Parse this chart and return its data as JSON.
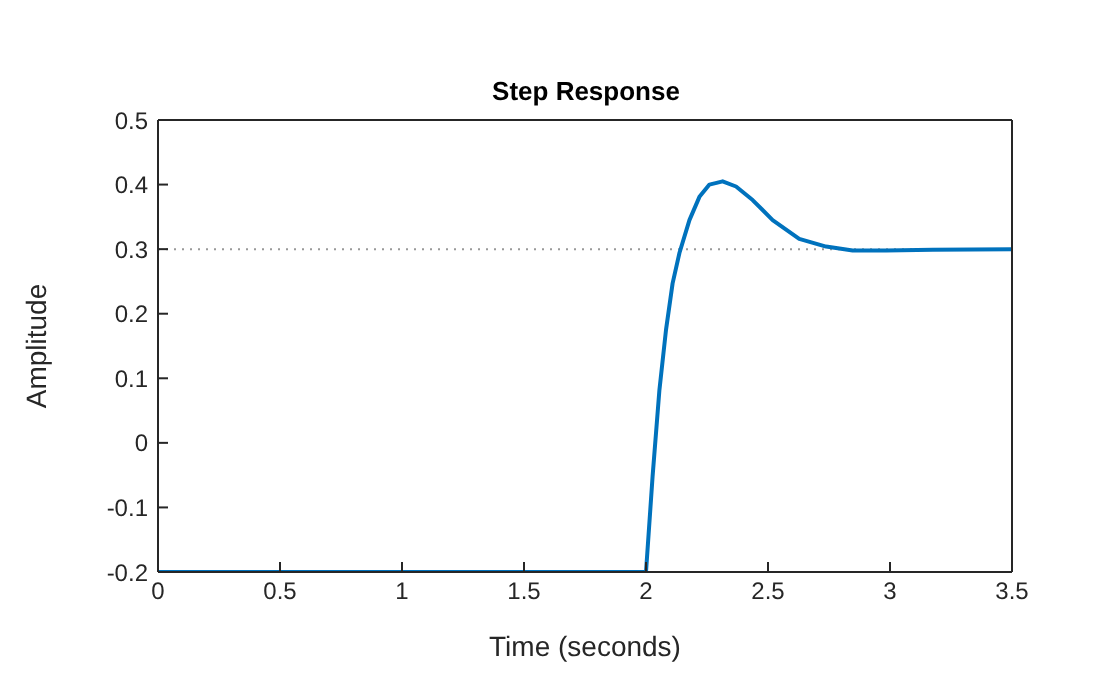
{
  "chart_data": {
    "type": "line",
    "title": "Step Response",
    "xlabel": "Time (seconds)",
    "ylabel": "Amplitude",
    "series": [
      {
        "color": "#0072bd",
        "x": [
          0,
          2.0,
          2.027,
          2.055,
          2.082,
          2.109,
          2.137,
          2.178,
          2.219,
          2.26,
          2.314,
          2.369,
          2.437,
          2.519,
          2.628,
          2.738,
          2.847,
          2.984,
          3.175,
          3.5
        ],
        "values": [
          -0.2,
          -0.2,
          -0.052,
          0.082,
          0.175,
          0.247,
          0.294,
          0.345,
          0.381,
          0.4,
          0.405,
          0.397,
          0.376,
          0.345,
          0.316,
          0.304,
          0.298,
          0.298,
          0.299,
          0.3
        ]
      }
    ],
    "xlim": [
      0,
      3.5
    ],
    "xticks": [
      0,
      0.5,
      1,
      1.5,
      2,
      2.5,
      3,
      3.5
    ],
    "ylim": [
      -0.2,
      0.5
    ],
    "yticks": [
      -0.2,
      -0.1,
      0,
      0.1,
      0.2,
      0.3,
      0.4,
      0.5
    ],
    "ref_lines": [
      {
        "axis": "y",
        "value": 0.3,
        "color": "#999999",
        "line_style": "dotted"
      }
    ],
    "legend": false,
    "marker": "none",
    "line_style": "solid"
  }
}
